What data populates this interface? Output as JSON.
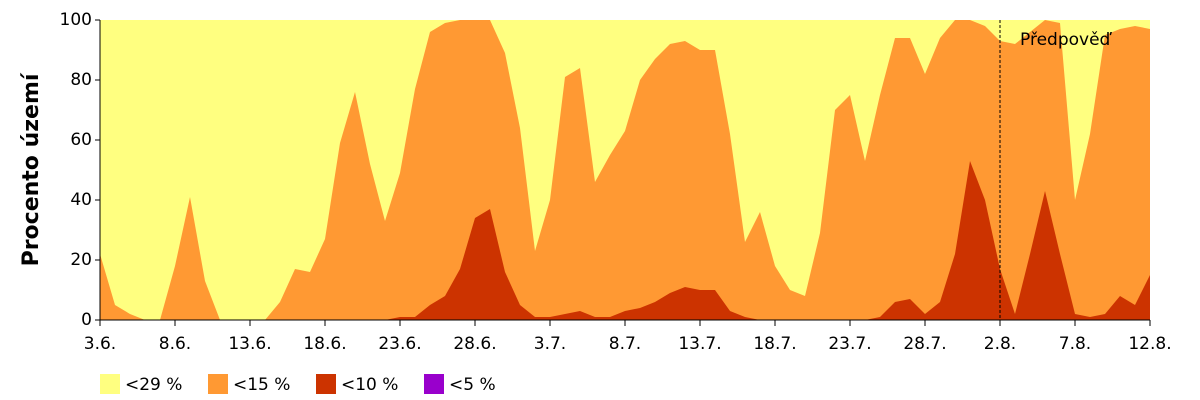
{
  "chart_data": {
    "type": "area",
    "y_label": "Procento území",
    "categories": [
      "3.6.",
      null,
      null,
      null,
      null,
      "8.6.",
      null,
      null,
      null,
      null,
      "13.6.",
      null,
      null,
      null,
      null,
      "18.6.",
      null,
      null,
      null,
      null,
      "23.6.",
      null,
      null,
      null,
      null,
      "28.6.",
      null,
      null,
      null,
      null,
      "3.7.",
      null,
      null,
      null,
      null,
      "8.7.",
      null,
      null,
      null,
      null,
      "13.7.",
      null,
      null,
      null,
      null,
      "18.7.",
      null,
      null,
      null,
      null,
      "23.7.",
      null,
      null,
      null,
      null,
      "28.7.",
      null,
      null,
      null,
      null,
      "2.8.",
      null,
      null,
      null,
      null,
      "7.8.",
      null,
      null,
      null,
      null,
      "12.8."
    ],
    "series": [
      {
        "name": "<29 %",
        "color": "#ffff80",
        "values": [
          100,
          100,
          100,
          100,
          100,
          100,
          100,
          100,
          100,
          100,
          100,
          100,
          100,
          100,
          100,
          100,
          100,
          100,
          100,
          100,
          100,
          100,
          100,
          100,
          100,
          100,
          100,
          100,
          100,
          100,
          100,
          100,
          100,
          100,
          100,
          100,
          100,
          100,
          100,
          100,
          100,
          100,
          100,
          100,
          100,
          100,
          100,
          100,
          100,
          100,
          100,
          100,
          100,
          100,
          100,
          100,
          100,
          100,
          100,
          100,
          100,
          100,
          100,
          100,
          100,
          100,
          100,
          100,
          100,
          100,
          100
        ]
      },
      {
        "name": "<15 %",
        "color": "#ff9933",
        "values": [
          22,
          5,
          2,
          0,
          0,
          18,
          41,
          13,
          0,
          0,
          0,
          0,
          6,
          17,
          16,
          27,
          59,
          76,
          52,
          33,
          49,
          77,
          96,
          99,
          100,
          100,
          100,
          89,
          64,
          23,
          40,
          81,
          84,
          46,
          55,
          63,
          80,
          87,
          92,
          93,
          90,
          90,
          62,
          26,
          36,
          18,
          10,
          8,
          29,
          70,
          75,
          53,
          75,
          94,
          94,
          82,
          94,
          100,
          100,
          98,
          93,
          92,
          96,
          100,
          99,
          40,
          62,
          95,
          97,
          98,
          97
        ]
      },
      {
        "name": "<10 %",
        "color": "#cc3300",
        "values": [
          0,
          0,
          0,
          0,
          0,
          0,
          0,
          0,
          0,
          0,
          0,
          0,
          0,
          0,
          0,
          0,
          0,
          0,
          0,
          0,
          1,
          1,
          5,
          8,
          17,
          34,
          37,
          16,
          5,
          1,
          1,
          2,
          3,
          1,
          1,
          3,
          4,
          6,
          9,
          11,
          10,
          10,
          3,
          1,
          0,
          0,
          0,
          0,
          0,
          0,
          0,
          0,
          1,
          6,
          7,
          2,
          6,
          22,
          53,
          40,
          17,
          2,
          22,
          43,
          22,
          2,
          1,
          2,
          8,
          5,
          15
        ]
      },
      {
        "name": "<5 %",
        "color": "#9900cc",
        "values": [
          0,
          0,
          0,
          0,
          0,
          0,
          0,
          0,
          0,
          0,
          0,
          0,
          0,
          0,
          0,
          0,
          0,
          0,
          0,
          0,
          0,
          0,
          0,
          0,
          0,
          0,
          0,
          0,
          0,
          0,
          0,
          0,
          0,
          0,
          0,
          0,
          0,
          0,
          0,
          0,
          0,
          0,
          0,
          0,
          0,
          0,
          0,
          0,
          0,
          0,
          0,
          0,
          0,
          0,
          0,
          0,
          0,
          0,
          0,
          0,
          0,
          0,
          0,
          0,
          0,
          0,
          0,
          0,
          0,
          0,
          0
        ]
      }
    ],
    "ylim": [
      0,
      100
    ],
    "yticks": [
      0,
      20,
      40,
      60,
      80,
      100
    ],
    "annotation": {
      "text": "Předpověď",
      "at": "2.8."
    }
  }
}
